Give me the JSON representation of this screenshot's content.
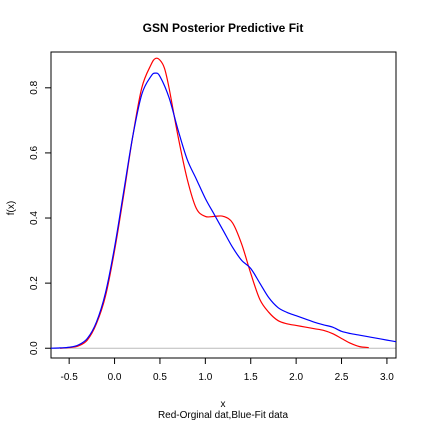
{
  "chart_data": {
    "type": "line",
    "title": "GSN Posterior Predictive Fit",
    "xlabel": "x",
    "xlabel_sub": "Red-Orginal dat,Blue-Fit data",
    "ylabel": "f(x)",
    "xlim": [
      -0.7,
      3.1
    ],
    "ylim": [
      -0.03,
      0.91
    ],
    "x_ticks": [
      -0.5,
      0.0,
      0.5,
      1.0,
      1.5,
      2.0,
      2.5,
      3.0
    ],
    "x_tick_labels": [
      "-0.5",
      "0.0",
      "0.5",
      "1.0",
      "1.5",
      "2.0",
      "2.5",
      "3.0"
    ],
    "y_ticks": [
      0.0,
      0.2,
      0.4,
      0.6,
      0.8
    ],
    "y_tick_labels": [
      "0.0",
      "0.2",
      "0.4",
      "0.6",
      "0.8"
    ],
    "baseline": 0.0,
    "grid": false,
    "series": [
      {
        "color": "#ff0000",
        "x": [
          -0.6,
          -0.5,
          -0.4,
          -0.3,
          -0.2,
          -0.1,
          0.0,
          0.1,
          0.2,
          0.3,
          0.4,
          0.45,
          0.5,
          0.55,
          0.6,
          0.7,
          0.8,
          0.9,
          1.0,
          1.1,
          1.2,
          1.3,
          1.4,
          1.5,
          1.6,
          1.7,
          1.8,
          1.9,
          2.0,
          2.1,
          2.2,
          2.3,
          2.4,
          2.5,
          2.6,
          2.7,
          2.8
        ],
        "y": [
          0.0,
          0.002,
          0.007,
          0.025,
          0.075,
          0.16,
          0.3,
          0.47,
          0.65,
          0.8,
          0.87,
          0.89,
          0.885,
          0.86,
          0.8,
          0.65,
          0.52,
          0.43,
          0.405,
          0.405,
          0.405,
          0.385,
          0.32,
          0.23,
          0.15,
          0.11,
          0.085,
          0.075,
          0.07,
          0.065,
          0.06,
          0.055,
          0.045,
          0.03,
          0.015,
          0.005,
          0.002
        ]
      },
      {
        "color": "#0000ff",
        "x": [
          -0.7,
          -0.6,
          -0.5,
          -0.4,
          -0.3,
          -0.2,
          -0.1,
          0.0,
          0.1,
          0.2,
          0.3,
          0.4,
          0.45,
          0.5,
          0.6,
          0.7,
          0.8,
          0.9,
          1.0,
          1.1,
          1.2,
          1.3,
          1.4,
          1.5,
          1.6,
          1.7,
          1.8,
          1.9,
          2.0,
          2.1,
          2.2,
          2.3,
          2.4,
          2.5,
          2.6,
          2.7,
          2.8,
          2.9,
          3.0,
          3.1
        ],
        "y": [
          0.0,
          0.001,
          0.003,
          0.01,
          0.03,
          0.08,
          0.17,
          0.31,
          0.48,
          0.65,
          0.78,
          0.835,
          0.845,
          0.835,
          0.77,
          0.67,
          0.58,
          0.52,
          0.46,
          0.41,
          0.36,
          0.31,
          0.27,
          0.245,
          0.2,
          0.155,
          0.125,
          0.11,
          0.1,
          0.09,
          0.08,
          0.072,
          0.065,
          0.052,
          0.045,
          0.04,
          0.035,
          0.03,
          0.025,
          0.02
        ]
      }
    ]
  }
}
